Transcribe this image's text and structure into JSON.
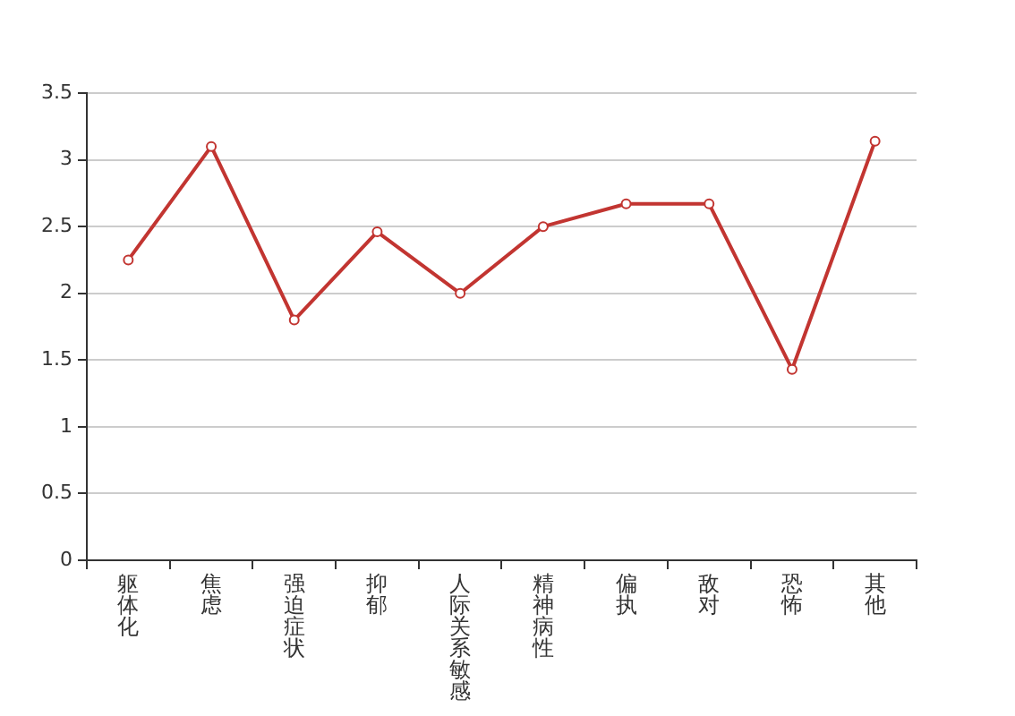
{
  "chart_data": {
    "type": "line",
    "categories": [
      "躯体化",
      "焦虑",
      "强迫症状",
      "抑郁",
      "人际关系敏感",
      "精神病性",
      "偏执",
      "敌对",
      "恐怖",
      "其他"
    ],
    "series": [
      {
        "color": "#c23531",
        "values": [
          2.25,
          3.1,
          1.8,
          2.46,
          2.0,
          2.5,
          2.67,
          2.67,
          1.43,
          3.14
        ]
      }
    ],
    "ylim": [
      0,
      3.5
    ],
    "yticks": [
      0,
      0.5,
      1,
      1.5,
      2,
      2.5,
      3,
      3.5
    ],
    "grid": "y",
    "marker": "circle",
    "line_style": "solid",
    "legend": false
  }
}
